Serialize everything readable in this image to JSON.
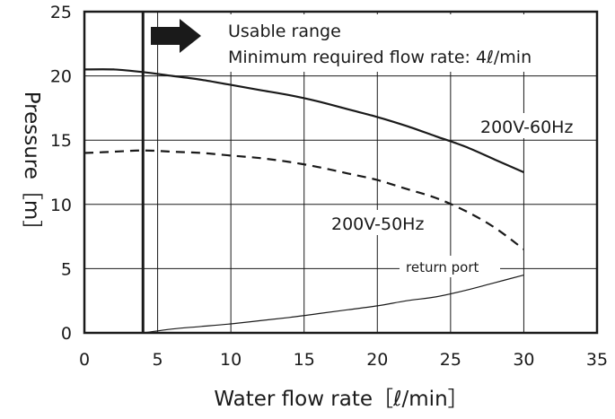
{
  "chart_data": {
    "type": "line",
    "xlabel": "Water flow rate［ℓ/min］",
    "ylabel": "Pressure［m］",
    "xlim": [
      0,
      35
    ],
    "ylim": [
      0,
      25
    ],
    "xticks": [
      "0",
      "5",
      "10",
      "15",
      "20",
      "25",
      "30",
      "35"
    ],
    "yticks": [
      "0",
      "5",
      "10",
      "15",
      "20",
      "25"
    ],
    "grid": true,
    "annotations": {
      "usable_range": "Usable range",
      "minimum_flow": "Minimum required flow rate: 4ℓ/min",
      "minimum_flow_x": 4
    },
    "series": [
      {
        "name": "200V-60Hz",
        "style": "solid",
        "x": [
          0,
          2,
          4,
          6,
          8,
          10,
          12,
          14,
          16,
          18,
          20,
          22,
          24,
          26,
          28,
          30
        ],
        "y": [
          20.5,
          20.5,
          20.3,
          20.0,
          19.7,
          19.3,
          18.9,
          18.5,
          18.0,
          17.4,
          16.8,
          16.1,
          15.3,
          14.5,
          13.5,
          12.5
        ]
      },
      {
        "name": "200V-50Hz",
        "style": "dashed",
        "x": [
          0,
          2,
          4,
          6,
          8,
          10,
          12,
          14,
          16,
          18,
          20,
          22,
          24,
          26,
          28,
          30
        ],
        "y": [
          14.0,
          14.1,
          14.2,
          14.1,
          14.0,
          13.8,
          13.6,
          13.3,
          12.9,
          12.4,
          11.9,
          11.2,
          10.5,
          9.5,
          8.2,
          6.5
        ]
      },
      {
        "name": "return port",
        "style": "thin",
        "x": [
          4,
          6,
          8,
          10,
          12,
          14,
          16,
          18,
          20,
          22,
          24,
          26,
          28,
          30
        ],
        "y": [
          0.0,
          0.3,
          0.5,
          0.7,
          0.95,
          1.2,
          1.5,
          1.8,
          2.1,
          2.5,
          2.8,
          3.3,
          3.9,
          4.5
        ]
      }
    ]
  },
  "colors": {
    "line": "#1a1a1a",
    "grid": "#1a1a1a",
    "background": "#ffffff"
  }
}
